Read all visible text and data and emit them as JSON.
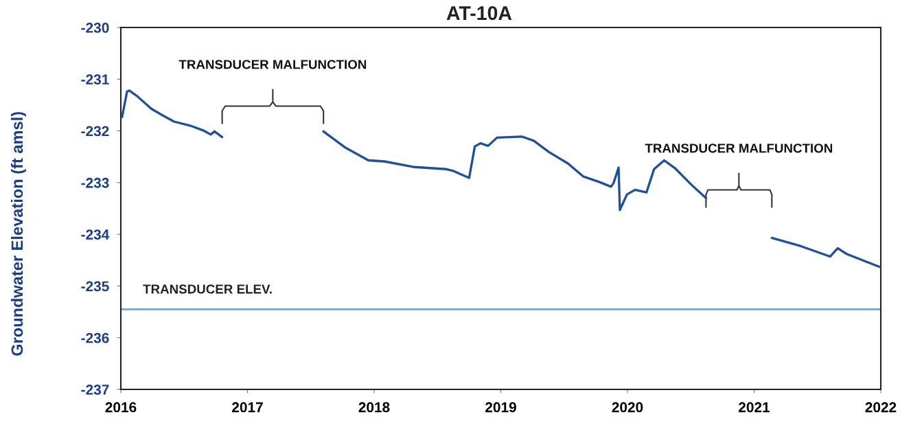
{
  "chart_data": {
    "type": "line",
    "title": "AT-10A",
    "ylabel": "Groundwater Elevation (ft amsl)",
    "x": [
      2016.01,
      2016.049,
      2016.067,
      2016.13,
      2016.24,
      2016.33,
      2016.42,
      2016.55,
      2016.65,
      2016.71,
      2016.74,
      2016.8,
      2017.2,
      2017.6,
      2017.77,
      2017.955,
      2018.08,
      2018.32,
      2018.57,
      2018.62,
      2018.75,
      2018.795,
      2018.84,
      2018.9,
      2018.97,
      2019.165,
      2019.26,
      2019.38,
      2019.53,
      2019.65,
      2019.78,
      2019.87,
      2019.89,
      2019.93,
      2019.94,
      2019.996,
      2020.06,
      2020.15,
      2020.21,
      2020.29,
      2020.375,
      2020.5,
      2020.62,
      2020.9,
      2021.14,
      2021.37,
      2021.6,
      2021.66,
      2021.73,
      2021.99
    ],
    "series": [
      {
        "color": "#1f4f9f",
        "values": [
          -231.73,
          -231.24,
          -231.22,
          -231.33,
          -231.57,
          -231.7,
          -231.82,
          -231.9,
          -231.99,
          -232.07,
          -232.01,
          -232.12,
          null,
          -232.01,
          -232.32,
          -232.57,
          -232.59,
          -232.7,
          -232.74,
          -232.77,
          -232.91,
          -232.3,
          -232.24,
          -232.29,
          -232.13,
          -232.11,
          -232.19,
          -232.41,
          -232.63,
          -232.88,
          -232.99,
          -233.08,
          -233.01,
          -232.71,
          -233.53,
          -233.23,
          -233.14,
          -233.19,
          -232.74,
          -232.57,
          -232.72,
          -233.03,
          -233.3,
          null,
          -234.07,
          -234.23,
          -234.43,
          -234.27,
          -234.38,
          -234.63
        ]
      }
    ],
    "xlim": [
      2016,
      2022
    ],
    "xticks": [
      2016,
      2017,
      2018,
      2019,
      2020,
      2021,
      2022
    ],
    "ylim": [
      -237,
      -230
    ],
    "yticks": [
      -237,
      -236,
      -235,
      -234,
      -233,
      -232,
      -231,
      -230
    ],
    "ref_lines": [
      {
        "axis": "y",
        "value": -235.45,
        "label": "TRANSDUCER ELEV.",
        "color": "#5aaae6"
      }
    ],
    "annotations": [
      "TRANSDUCER MALFUNCTION",
      "TRANSDUCER MALFUNCTION"
    ]
  }
}
